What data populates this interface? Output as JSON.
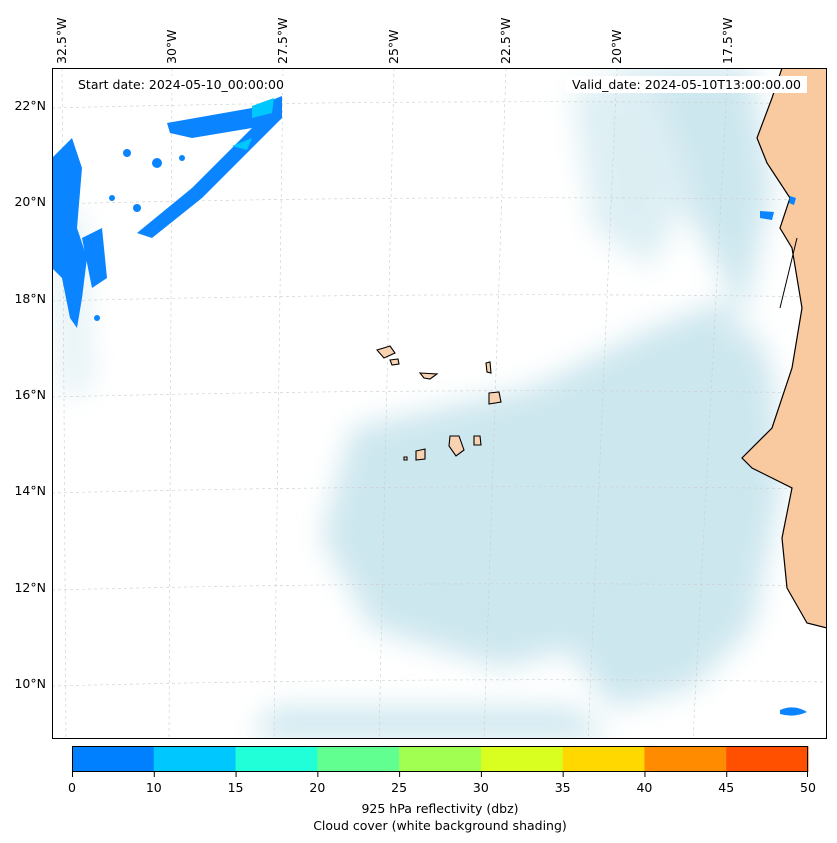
{
  "header": {
    "start_date": "Start date: 2024-05-10_00:00:00",
    "valid_date": "Valid_date: 2024-05-10T13:00:00.00"
  },
  "axes": {
    "lon_labels": [
      "32.5°W",
      "30°W",
      "27.5°W",
      "25°W",
      "22.5°W",
      "20°W",
      "17.5°W"
    ],
    "lat_labels": [
      "22°N",
      "20°N",
      "18°N",
      "16°N",
      "14°N",
      "12°N",
      "10°N"
    ]
  },
  "chart_data": {
    "type": "heatmap",
    "title": "",
    "colorbar": {
      "label": "925 hPa reflectivity (dbz)",
      "sublabel": "Cloud cover (white background shading)",
      "ticks": [
        "0",
        "10",
        "15",
        "20",
        "25",
        "30",
        "35",
        "40",
        "45",
        "50"
      ],
      "levels": [
        0,
        10,
        15,
        20,
        25,
        30,
        35,
        40,
        45,
        50
      ],
      "colors": [
        "#0080ff",
        "#00c8ff",
        "#20ffd8",
        "#60ff90",
        "#a0ff50",
        "#d8ff20",
        "#ffd800",
        "#ff8c00",
        "#ff5000"
      ]
    },
    "extent": {
      "lon": [
        -32.7,
        -15.3
      ],
      "lat": [
        8.9,
        22.8
      ]
    }
  },
  "colors": {
    "land": "#f9c9a0",
    "cloud": "#b8dde8",
    "reflectivity": "#0a84ff"
  }
}
